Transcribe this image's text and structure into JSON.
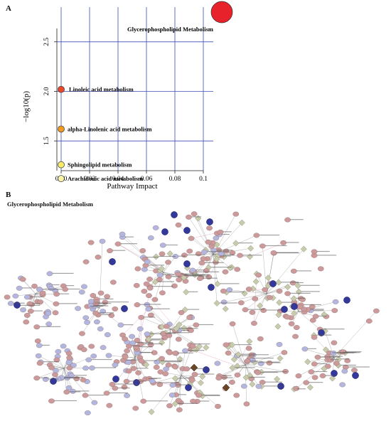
{
  "figure": {
    "panel_a_letter": "A",
    "panel_b_letter": "B",
    "network_title": "Glycerophospholipid Metabolism"
  },
  "chart_data": {
    "type": "scatter",
    "title": "",
    "xlabel": "Pathway Impact",
    "ylabel": "−log10(p)",
    "xlim": [
      0.0,
      0.11
    ],
    "ylim": [
      1.2,
      2.85
    ],
    "xticks": [
      0.0,
      0.02,
      0.04,
      0.06,
      0.08,
      0.1
    ],
    "xtick_labels": [
      "0.00",
      "0.02",
      "0.04",
      "0.06",
      "0.08",
      "0.1"
    ],
    "yticks": [
      1.5,
      2.0,
      2.5
    ],
    "ytick_labels": [
      "1.5",
      "2.0",
      "2.5"
    ],
    "grid": true,
    "points": [
      {
        "label": "Glycerophospholipid Metabolism",
        "x": 0.113,
        "y": 2.8,
        "color": "#e8222a",
        "size": "large"
      },
      {
        "label": "Linoleic acid metabolism",
        "x": 0.0,
        "y": 2.02,
        "color": "#e8482c",
        "size": "small"
      },
      {
        "label": "alpha-Linolenic acid metabolism",
        "x": 0.0,
        "y": 1.62,
        "color": "#f09a24",
        "size": "small"
      },
      {
        "label": "Sphingolipid metabolism",
        "x": 0.0,
        "y": 1.26,
        "color": "#f7ec6a",
        "size": "small"
      },
      {
        "label": "Arachidonic acid metabolism",
        "x": 0.0,
        "y": 1.12,
        "color": "#f9f4a8",
        "size": "small"
      }
    ]
  },
  "network": {
    "node_colors": {
      "compound": "#cc9a9a",
      "gene": "#b3b6de",
      "reaction": "#c8ccad",
      "hit": "#34389a",
      "key": "#6a4423"
    }
  }
}
